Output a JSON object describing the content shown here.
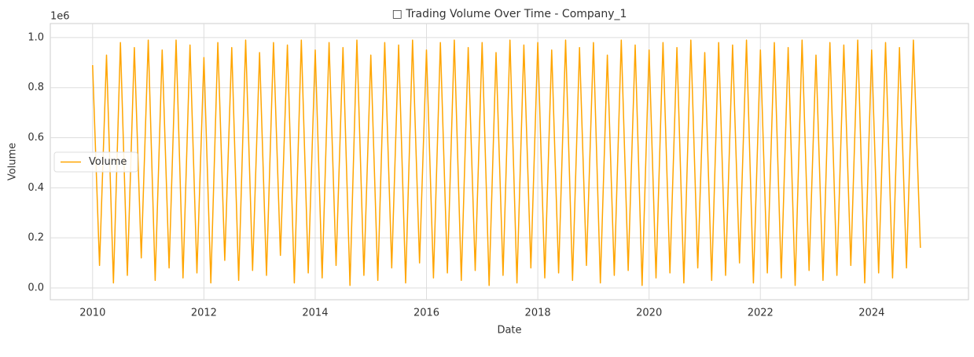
{
  "chart_data": {
    "type": "line",
    "title": "□ Trading Volume Over Time - Company_1",
    "xlabel": "Date",
    "ylabel": "Volume",
    "y_offset_label": "1e6",
    "xlim": [
      2009.24,
      2025.74
    ],
    "xticks": [
      2010,
      2012,
      2014,
      2016,
      2018,
      2020,
      2022,
      2024
    ],
    "ylim": [
      -0.047,
      1.056
    ],
    "yticks": [
      {
        "value": 0,
        "label": "0.0"
      },
      0.2,
      0.4,
      0.6,
      0.8,
      {
        "value": 1,
        "label": "1.0"
      }
    ],
    "grid": true,
    "legend": "left",
    "x": [
      2010,
      2010.125,
      2010.25,
      2010.375,
      2010.5,
      2010.625,
      2010.75,
      2010.875,
      2011,
      2011.125,
      2011.25,
      2011.375,
      2011.5,
      2011.625,
      2011.75,
      2011.875,
      2012,
      2012.125,
      2012.25,
      2012.375,
      2012.5,
      2012.625,
      2012.75,
      2012.875,
      2013,
      2013.125,
      2013.25,
      2013.375,
      2013.5,
      2013.625,
      2013.75,
      2013.875,
      2014,
      2014.125,
      2014.25,
      2014.375,
      2014.5,
      2014.625,
      2014.75,
      2014.875,
      2015,
      2015.125,
      2015.25,
      2015.375,
      2015.5,
      2015.625,
      2015.75,
      2015.875,
      2016,
      2016.125,
      2016.25,
      2016.375,
      2016.5,
      2016.625,
      2016.75,
      2016.875,
      2017,
      2017.125,
      2017.25,
      2017.375,
      2017.5,
      2017.625,
      2017.75,
      2017.875,
      2018,
      2018.125,
      2018.25,
      2018.375,
      2018.5,
      2018.625,
      2018.75,
      2018.875,
      2019,
      2019.125,
      2019.25,
      2019.375,
      2019.5,
      2019.625,
      2019.75,
      2019.875,
      2020,
      2020.125,
      2020.25,
      2020.375,
      2020.5,
      2020.625,
      2020.75,
      2020.875,
      2021,
      2021.125,
      2021.25,
      2021.375,
      2021.5,
      2021.625,
      2021.75,
      2021.875,
      2022,
      2022.125,
      2022.25,
      2022.375,
      2022.5,
      2022.625,
      2022.75,
      2022.875,
      2023,
      2023.125,
      2023.25,
      2023.375,
      2023.5,
      2023.625,
      2023.75,
      2023.875,
      2024,
      2024.125,
      2024.25,
      2024.375,
      2024.5,
      2024.625,
      2024.75,
      2024.875
    ],
    "series": [
      {
        "name": "Volume",
        "color": "#ffa500",
        "values": [
          0.89,
          0.09,
          0.93,
          0.02,
          0.98,
          0.05,
          0.96,
          0.12,
          0.99,
          0.03,
          0.95,
          0.08,
          0.99,
          0.04,
          0.97,
          0.06,
          0.92,
          0.02,
          0.98,
          0.11,
          0.96,
          0.03,
          0.99,
          0.07,
          0.94,
          0.05,
          0.98,
          0.13,
          0.97,
          0.02,
          0.99,
          0.06,
          0.95,
          0.04,
          0.98,
          0.09,
          0.96,
          0.01,
          0.99,
          0.05,
          0.93,
          0.03,
          0.98,
          0.08,
          0.97,
          0.02,
          0.99,
          0.1,
          0.95,
          0.04,
          0.98,
          0.06,
          0.99,
          0.03,
          0.96,
          0.07,
          0.98,
          0.01,
          0.94,
          0.05,
          0.99,
          0.02,
          0.97,
          0.08,
          0.98,
          0.04,
          0.95,
          0.06,
          0.99,
          0.03,
          0.96,
          0.09,
          0.98,
          0.02,
          0.93,
          0.05,
          0.99,
          0.07,
          0.97,
          0.01,
          0.95,
          0.04,
          0.98,
          0.06,
          0.96,
          0.02,
          0.99,
          0.08,
          0.94,
          0.03,
          0.98,
          0.05,
          0.97,
          0.1,
          0.99,
          0.02,
          0.95,
          0.06,
          0.98,
          0.04,
          0.96,
          0.01,
          0.99,
          0.07,
          0.93,
          0.03,
          0.98,
          0.05,
          0.97,
          0.09,
          0.99,
          0.02,
          0.95,
          0.06,
          0.98,
          0.04,
          0.96,
          0.08,
          0.99,
          0.16
        ]
      }
    ]
  }
}
